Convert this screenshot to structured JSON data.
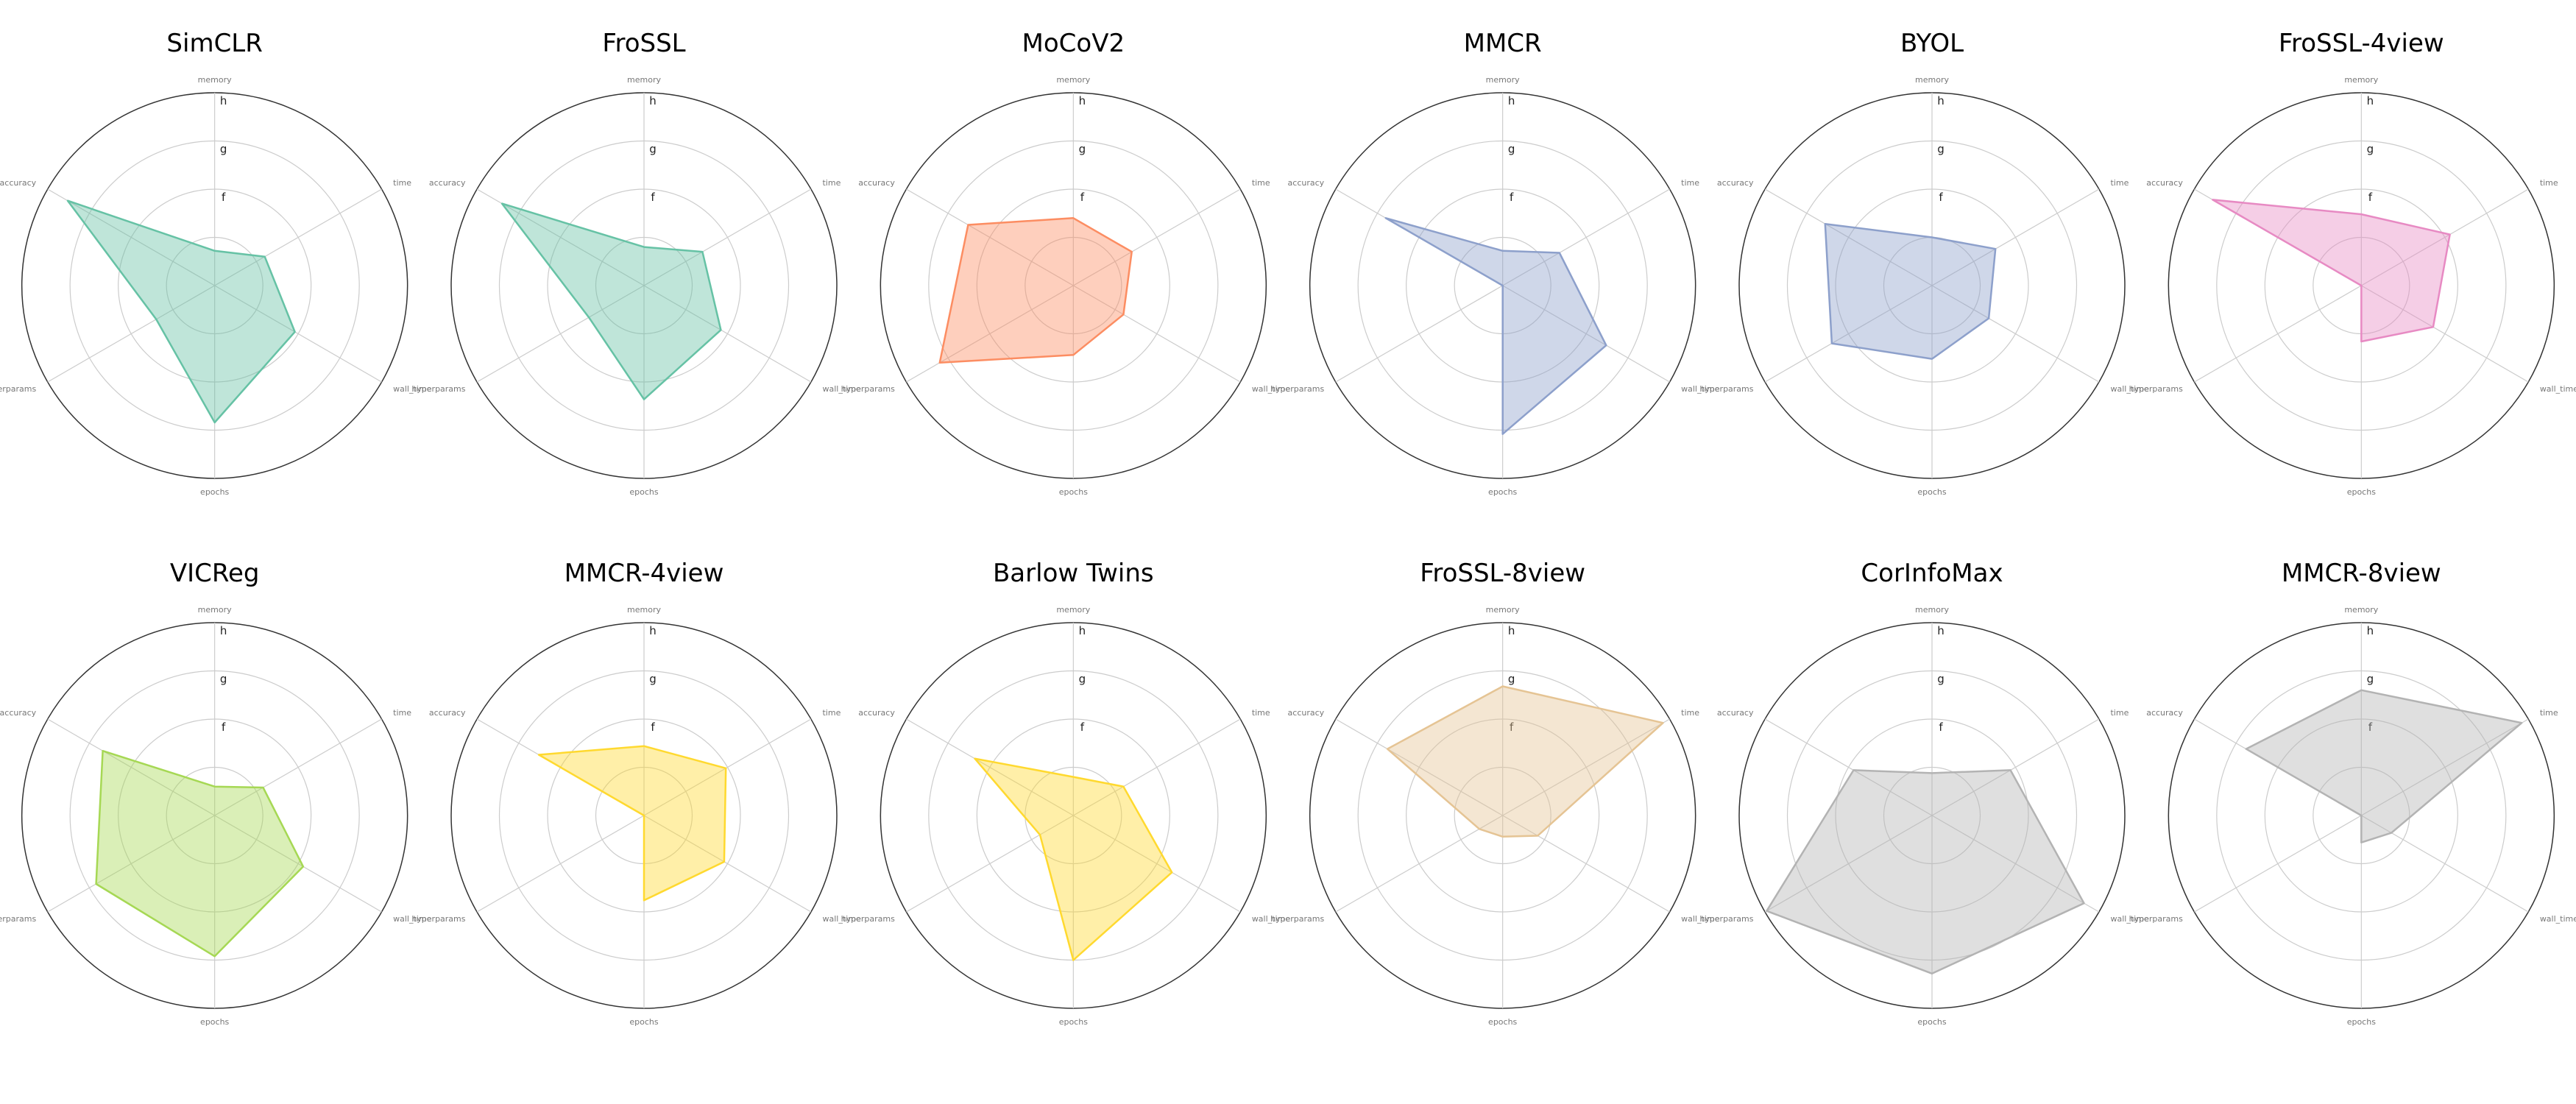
{
  "chart_data": {
    "type": "radar",
    "axes": [
      "memory",
      "time",
      "wall_time",
      "epochs",
      "hyperparams",
      "accuracy"
    ],
    "ring_labels": [
      "f",
      "g",
      "h"
    ],
    "ylim": [
      0,
      1
    ],
    "grid": true,
    "panels": [
      {
        "title": "SimCLR",
        "color": "#66c2a5",
        "values": [
          0.18,
          0.3,
          0.48,
          0.71,
          0.35,
          0.88
        ]
      },
      {
        "title": "FroSSL",
        "color": "#66c2a5",
        "values": [
          0.2,
          0.35,
          0.46,
          0.59,
          0.33,
          0.85
        ]
      },
      {
        "title": "MoCoV2",
        "color": "#fc8d62",
        "values": [
          0.35,
          0.35,
          0.3,
          0.36,
          0.8,
          0.63
        ]
      },
      {
        "title": "MMCR",
        "color": "#8da0cb",
        "values": [
          0.18,
          0.34,
          0.62,
          0.77,
          0.0,
          0.7
        ]
      },
      {
        "title": "BYOL",
        "color": "#8da0cb",
        "values": [
          0.25,
          0.38,
          0.34,
          0.38,
          0.6,
          0.64
        ]
      },
      {
        "title": "FroSSL-4view",
        "color": "#e78ac3",
        "values": [
          0.37,
          0.53,
          0.43,
          0.29,
          0.0,
          0.89
        ]
      },
      {
        "title": "VICReg",
        "color": "#a6d854",
        "values": [
          0.15,
          0.29,
          0.53,
          0.73,
          0.71,
          0.67
        ]
      },
      {
        "title": "MMCR-4view",
        "color": "#ffd92f",
        "values": [
          0.36,
          0.49,
          0.48,
          0.44,
          0.0,
          0.63
        ]
      },
      {
        "title": "Barlow Twins",
        "color": "#ffd92f",
        "values": [
          0.2,
          0.3,
          0.59,
          0.75,
          0.2,
          0.59
        ]
      },
      {
        "title": "FroSSL-8view",
        "color": "#e5c494",
        "values": [
          0.67,
          0.96,
          0.21,
          0.11,
          0.14,
          0.69
        ]
      },
      {
        "title": "CorInfoMax",
        "color": "#b3b3b3",
        "values": [
          0.22,
          0.47,
          0.91,
          0.82,
          0.99,
          0.47
        ]
      },
      {
        "title": "MMCR-8view",
        "color": "#b3b3b3",
        "values": [
          0.65,
          0.96,
          0.18,
          0.14,
          0.0,
          0.69
        ]
      }
    ]
  }
}
